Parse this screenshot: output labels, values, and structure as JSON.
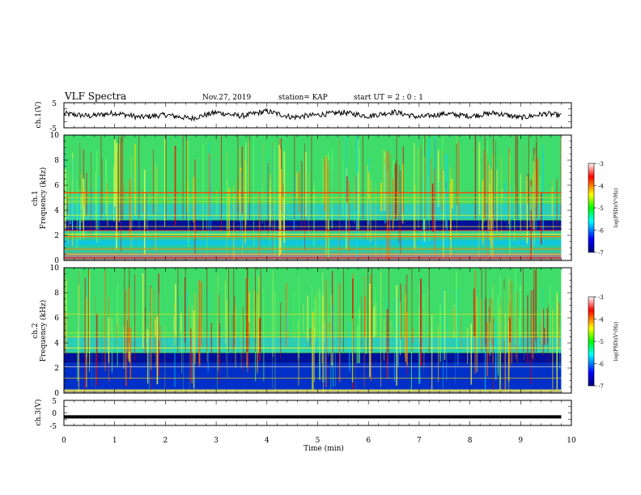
{
  "header": {
    "title": "VLF Spectra",
    "date": "Nov.27, 2019",
    "station": "station= KAP",
    "start": "start  UT  =   2 : 0  : 1"
  },
  "axes_labels": {
    "time_xlabel": "Time  (min)",
    "ch1_wave_ylabel": "ch.1(V)",
    "ch3_wave_ylabel": "ch.3(V)",
    "ch1_spec_ylabel_1": "ch.1",
    "ch1_spec_ylabel_2": "Frequency  (kHz)",
    "ch2_spec_ylabel_1": "ch.2",
    "ch2_spec_ylabel_2": "Frequency  (kHz)",
    "colorbar_label": "log(PSD)(V²/Hz)"
  },
  "chart_data": [
    {
      "type": "line",
      "name": "ch1-waveform",
      "ylabel": "ch.1(V)",
      "xlim": [
        0,
        10
      ],
      "ylim": [
        -5,
        5
      ],
      "yticks": [
        "5",
        "-5"
      ],
      "x": [
        0,
        0.5,
        1,
        1.5,
        2,
        2.5,
        3,
        3.5,
        4,
        4.5,
        5,
        5.5,
        6,
        6.5,
        7,
        7.5,
        8,
        8.5,
        9,
        9.5,
        9.8
      ],
      "y": [
        0.5,
        -0.5,
        0.8,
        -1.0,
        0.0,
        -1.5,
        1.0,
        -0.5,
        1.5,
        -1.0,
        0.0,
        1.0,
        -0.5,
        1.2,
        -1.0,
        0.5,
        -0.5,
        0.8,
        -1.2,
        0.5,
        -0.3
      ]
    },
    {
      "type": "heatmap",
      "name": "ch1-spectrogram",
      "xlim": [
        0,
        9.8
      ],
      "ylim": [
        0,
        10
      ],
      "yticks": [
        "0",
        "2",
        "4",
        "6",
        "8",
        "10"
      ],
      "colorbar": {
        "range": [
          -7,
          -3
        ],
        "ticks": [
          "-3",
          "-4",
          "-5",
          "-6",
          "-7"
        ]
      }
    },
    {
      "type": "heatmap",
      "name": "ch2-spectrogram",
      "xlim": [
        0,
        9.8
      ],
      "ylim": [
        0,
        10
      ],
      "yticks": [
        "0",
        "2",
        "4",
        "6",
        "8",
        "10"
      ],
      "colorbar": {
        "range": [
          -7,
          -3
        ],
        "ticks": [
          "-3",
          "-4",
          "-5",
          "-6",
          "-7"
        ]
      }
    },
    {
      "type": "line",
      "name": "ch3-waveform",
      "ylabel": "ch.3(V)",
      "xlim": [
        0,
        10
      ],
      "ylim": [
        -5,
        5
      ],
      "yticks": [
        "5",
        "0",
        "-5"
      ],
      "x": [
        0,
        9.8
      ],
      "y": [
        -1.8,
        -1.8
      ]
    }
  ],
  "time_axis": {
    "ticks": [
      "0",
      "1",
      "2",
      "3",
      "4",
      "5",
      "6",
      "7",
      "8",
      "9",
      "10"
    ],
    "range": [
      0,
      10
    ]
  }
}
